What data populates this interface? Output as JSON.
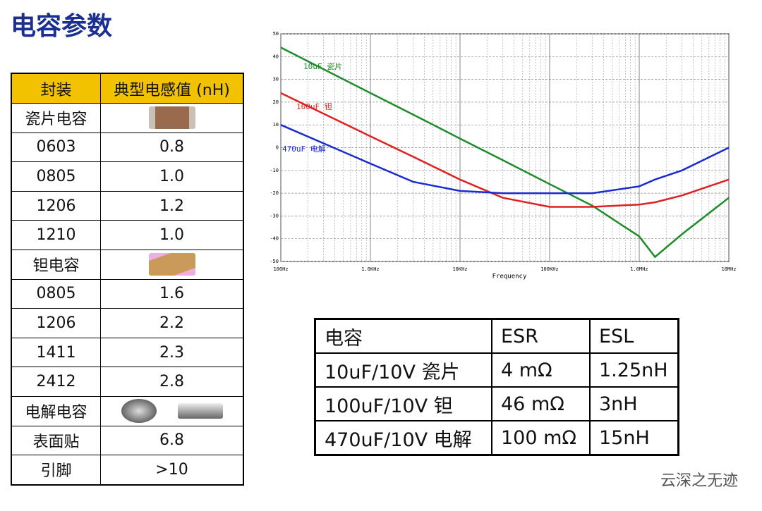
{
  "header": {
    "title": "电容参数"
  },
  "package_table": {
    "header": [
      "封装",
      "典型电感值 (nH)"
    ],
    "rows": [
      [
        "瓷片电容"
      ],
      [
        "0603",
        "0.8"
      ],
      [
        "0805",
        "1.0"
      ],
      [
        "1206",
        "1.2"
      ],
      [
        "1210",
        "1.0"
      ],
      [
        "钽电容"
      ],
      [
        "0805",
        "1.6"
      ],
      [
        "1206",
        "2.2"
      ],
      [
        "1411",
        "2.3"
      ],
      [
        "2412",
        "2.8"
      ],
      [
        "电解电容"
      ],
      [
        "表面贴",
        "6.8"
      ],
      [
        "引脚",
        ">10"
      ]
    ]
  },
  "chart_data": {
    "type": "line",
    "x_label": "Frequency",
    "log_x": true,
    "grid": true,
    "x": [
      100,
      1000,
      3000,
      10000,
      30000,
      100000,
      300000,
      1000000,
      1500000,
      3000000,
      10000000
    ],
    "xlim": [
      100,
      10000000
    ],
    "xticks": [
      {
        "value": 100,
        "label": "100Hz"
      },
      {
        "value": 1000,
        "label": "1.0KHz"
      },
      {
        "value": 10000,
        "label": "10KHz"
      },
      {
        "value": 100000,
        "label": "100KHz"
      },
      {
        "value": 1000000,
        "label": "1.0MHz"
      },
      {
        "value": 10000000,
        "label": "10MHz"
      }
    ],
    "ylim": [
      -50,
      50
    ],
    "yticks": [
      50,
      40,
      30,
      20,
      10,
      0,
      -10,
      -20,
      -30,
      -40,
      -50
    ],
    "series": [
      {
        "name": "10uF 瓷片",
        "color": "#1e8c2a",
        "values": [
          44,
          24,
          14.5,
          4,
          -5.5,
          -16,
          -25.5,
          -39,
          -48,
          -38,
          -22
        ]
      },
      {
        "name": "100uF 钽",
        "color": "#e02020",
        "values": [
          24,
          5,
          -4,
          -14,
          -22,
          -26,
          -26,
          -25,
          -24,
          -21,
          -14
        ]
      },
      {
        "name": "470uF 电解",
        "color": "#1a2bd0",
        "values": [
          10,
          -7,
          -15,
          -19,
          -20,
          -20,
          -20,
          -17,
          -14,
          -10,
          0
        ]
      }
    ]
  },
  "esr_table": {
    "header": [
      "电容",
      "ESR",
      "ESL"
    ],
    "rows": [
      [
        "10uF/10V 瓷片",
        "4 mΩ",
        "1.25nH"
      ],
      [
        "100uF/10V 钽",
        "46 mΩ",
        "3nH"
      ],
      [
        "470uF/10V 电解",
        "100 mΩ",
        "15nH"
      ]
    ]
  },
  "watermark": "云深之无迹"
}
